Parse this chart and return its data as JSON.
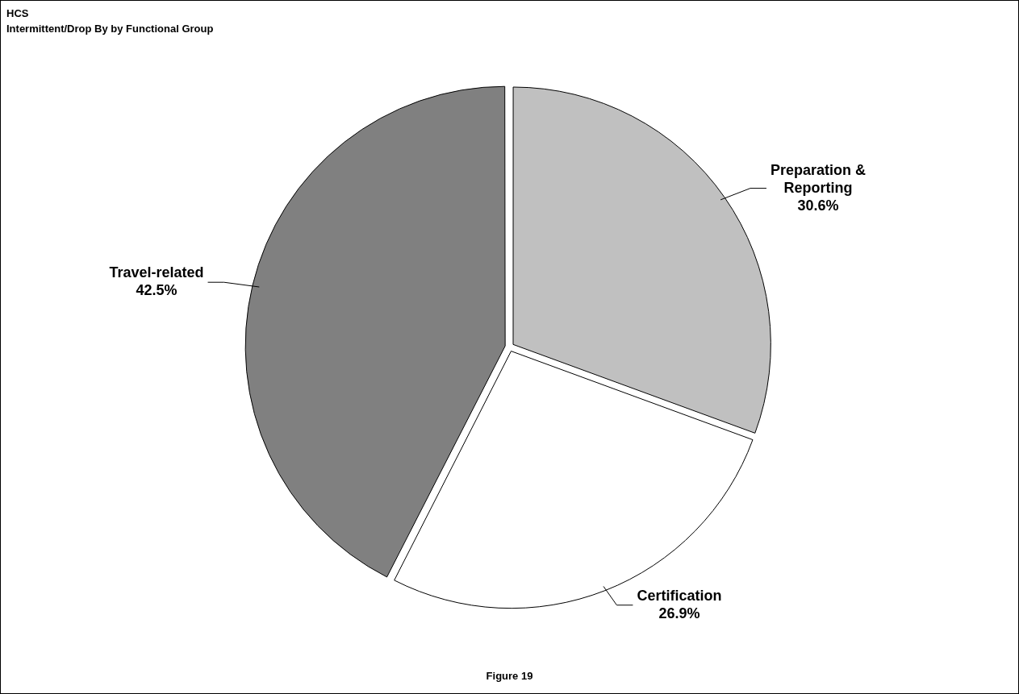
{
  "chart_data": {
    "type": "pie",
    "title": "HCS",
    "subtitle": "Intermittent/Drop By by Functional Group",
    "categories": [
      "Preparation & Reporting",
      "Certification",
      "Travel-related"
    ],
    "values": [
      30.6,
      26.9,
      42.5
    ],
    "value_labels": [
      "30.6%",
      "26.9%",
      "42.5%"
    ],
    "colors": [
      "#c0c0c0",
      "#ffffff",
      "#808080"
    ],
    "legend": false,
    "annotations": [
      "Figure 19"
    ]
  }
}
